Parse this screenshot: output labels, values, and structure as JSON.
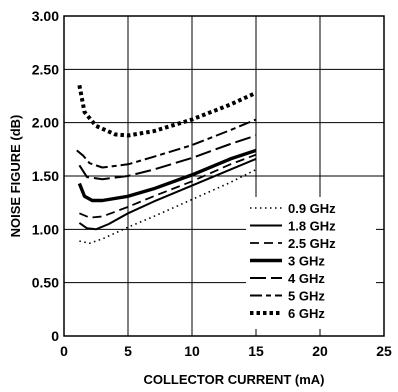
{
  "chart_data": {
    "type": "line",
    "xlabel": "COLLECTOR CURRENT (mA)",
    "ylabel": "NOISE FIGURE (dB)",
    "xlim": [
      0,
      25
    ],
    "ylim": [
      0,
      3.0
    ],
    "xticks": [
      0,
      5,
      10,
      15,
      20,
      25
    ],
    "yticks": [
      0,
      0.5,
      1.0,
      1.5,
      2.0,
      2.5,
      3.0
    ],
    "xtick_labels": [
      "0",
      "5",
      "10",
      "15",
      "20",
      "25"
    ],
    "ytick_labels": [
      "0",
      "0.50",
      "1.00",
      "1.50",
      "2.00",
      "2.50",
      "3.00"
    ],
    "grid": true,
    "legend_position": "bottom-right",
    "series": [
      {
        "name": "0.9 GHz",
        "dash": "dotted",
        "color": "#000000",
        "points": [
          [
            1.2,
            0.89
          ],
          [
            2,
            0.87
          ],
          [
            3,
            0.91
          ],
          [
            5,
            1.02
          ],
          [
            7,
            1.12
          ],
          [
            10,
            1.28
          ],
          [
            13,
            1.44
          ],
          [
            15,
            1.56
          ]
        ]
      },
      {
        "name": "1.8 GHz",
        "dash": "solid-thin",
        "color": "#000000",
        "points": [
          [
            1.2,
            1.06
          ],
          [
            1.8,
            1.01
          ],
          [
            2.5,
            1.0
          ],
          [
            3.5,
            1.05
          ],
          [
            5,
            1.15
          ],
          [
            7,
            1.26
          ],
          [
            10,
            1.41
          ],
          [
            13,
            1.56
          ],
          [
            15,
            1.66
          ]
        ]
      },
      {
        "name": "2.5 GHz",
        "dash": "dashed",
        "color": "#000000",
        "points": [
          [
            1.2,
            1.15
          ],
          [
            2,
            1.11
          ],
          [
            3,
            1.12
          ],
          [
            5,
            1.21
          ],
          [
            7,
            1.31
          ],
          [
            10,
            1.45
          ],
          [
            13,
            1.61
          ],
          [
            15,
            1.7
          ]
        ]
      },
      {
        "name": "3 GHz",
        "dash": "solid-thick",
        "color": "#000000",
        "points": [
          [
            1.2,
            1.43
          ],
          [
            1.6,
            1.31
          ],
          [
            2.2,
            1.27
          ],
          [
            3,
            1.27
          ],
          [
            5,
            1.31
          ],
          [
            7,
            1.38
          ],
          [
            10,
            1.51
          ],
          [
            13,
            1.66
          ],
          [
            15,
            1.74
          ]
        ]
      },
      {
        "name": "4 GHz",
        "dash": "long-dash",
        "color": "#000000",
        "points": [
          [
            1.2,
            1.6
          ],
          [
            1.8,
            1.49
          ],
          [
            3,
            1.47
          ],
          [
            5,
            1.5
          ],
          [
            7,
            1.56
          ],
          [
            10,
            1.67
          ],
          [
            13,
            1.8
          ],
          [
            15,
            1.88
          ]
        ]
      },
      {
        "name": "5 GHz",
        "dash": "dash-dot",
        "color": "#000000",
        "points": [
          [
            1.0,
            1.74
          ],
          [
            1.5,
            1.69
          ],
          [
            2,
            1.62
          ],
          [
            3,
            1.58
          ],
          [
            5,
            1.61
          ],
          [
            7,
            1.68
          ],
          [
            10,
            1.79
          ],
          [
            13,
            1.93
          ],
          [
            15,
            2.03
          ]
        ]
      },
      {
        "name": "6 GHz",
        "dash": "heavy-dotted",
        "color": "#000000",
        "points": [
          [
            1.2,
            2.35
          ],
          [
            1.6,
            2.1
          ],
          [
            2.5,
            1.97
          ],
          [
            4,
            1.89
          ],
          [
            5,
            1.88
          ],
          [
            7,
            1.92
          ],
          [
            10,
            2.03
          ],
          [
            13,
            2.17
          ],
          [
            15,
            2.28
          ]
        ]
      }
    ]
  }
}
